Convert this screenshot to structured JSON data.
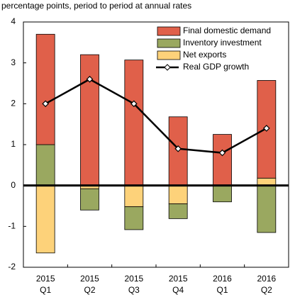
{
  "chart_data": {
    "type": "bar",
    "subtitle": "percentage points, period to period at annual rates",
    "categories": [
      [
        "2015",
        "Q1"
      ],
      [
        "2015",
        "Q2"
      ],
      [
        "2015",
        "Q3"
      ],
      [
        "2015",
        "Q4"
      ],
      [
        "2016",
        "Q1"
      ],
      [
        "2016",
        "Q2"
      ]
    ],
    "series": [
      {
        "name": "Net exports",
        "color": "#fdd27a",
        "values": [
          -1.65,
          -0.08,
          -0.52,
          -0.45,
          0,
          0.18
        ]
      },
      {
        "name": "Inventory investment",
        "color": "#9aa860",
        "values": [
          1.0,
          -0.52,
          -0.56,
          -0.36,
          -0.4,
          -1.15
        ]
      },
      {
        "name": "Final domestic demand",
        "color": "#e0604a",
        "values": [
          2.7,
          3.2,
          3.07,
          1.68,
          1.25,
          2.39
        ]
      },
      {
        "name": "Real GDP growth",
        "type": "line",
        "color": "#000000",
        "values": [
          2.0,
          2.6,
          2.0,
          0.9,
          0.8,
          1.4
        ]
      }
    ],
    "legend_order": [
      2,
      1,
      0,
      3
    ],
    "ylim": [
      -2,
      4
    ],
    "yticks": [
      -2,
      -1,
      0,
      1,
      2,
      3,
      4
    ],
    "grid": false,
    "legend": "upper right"
  }
}
